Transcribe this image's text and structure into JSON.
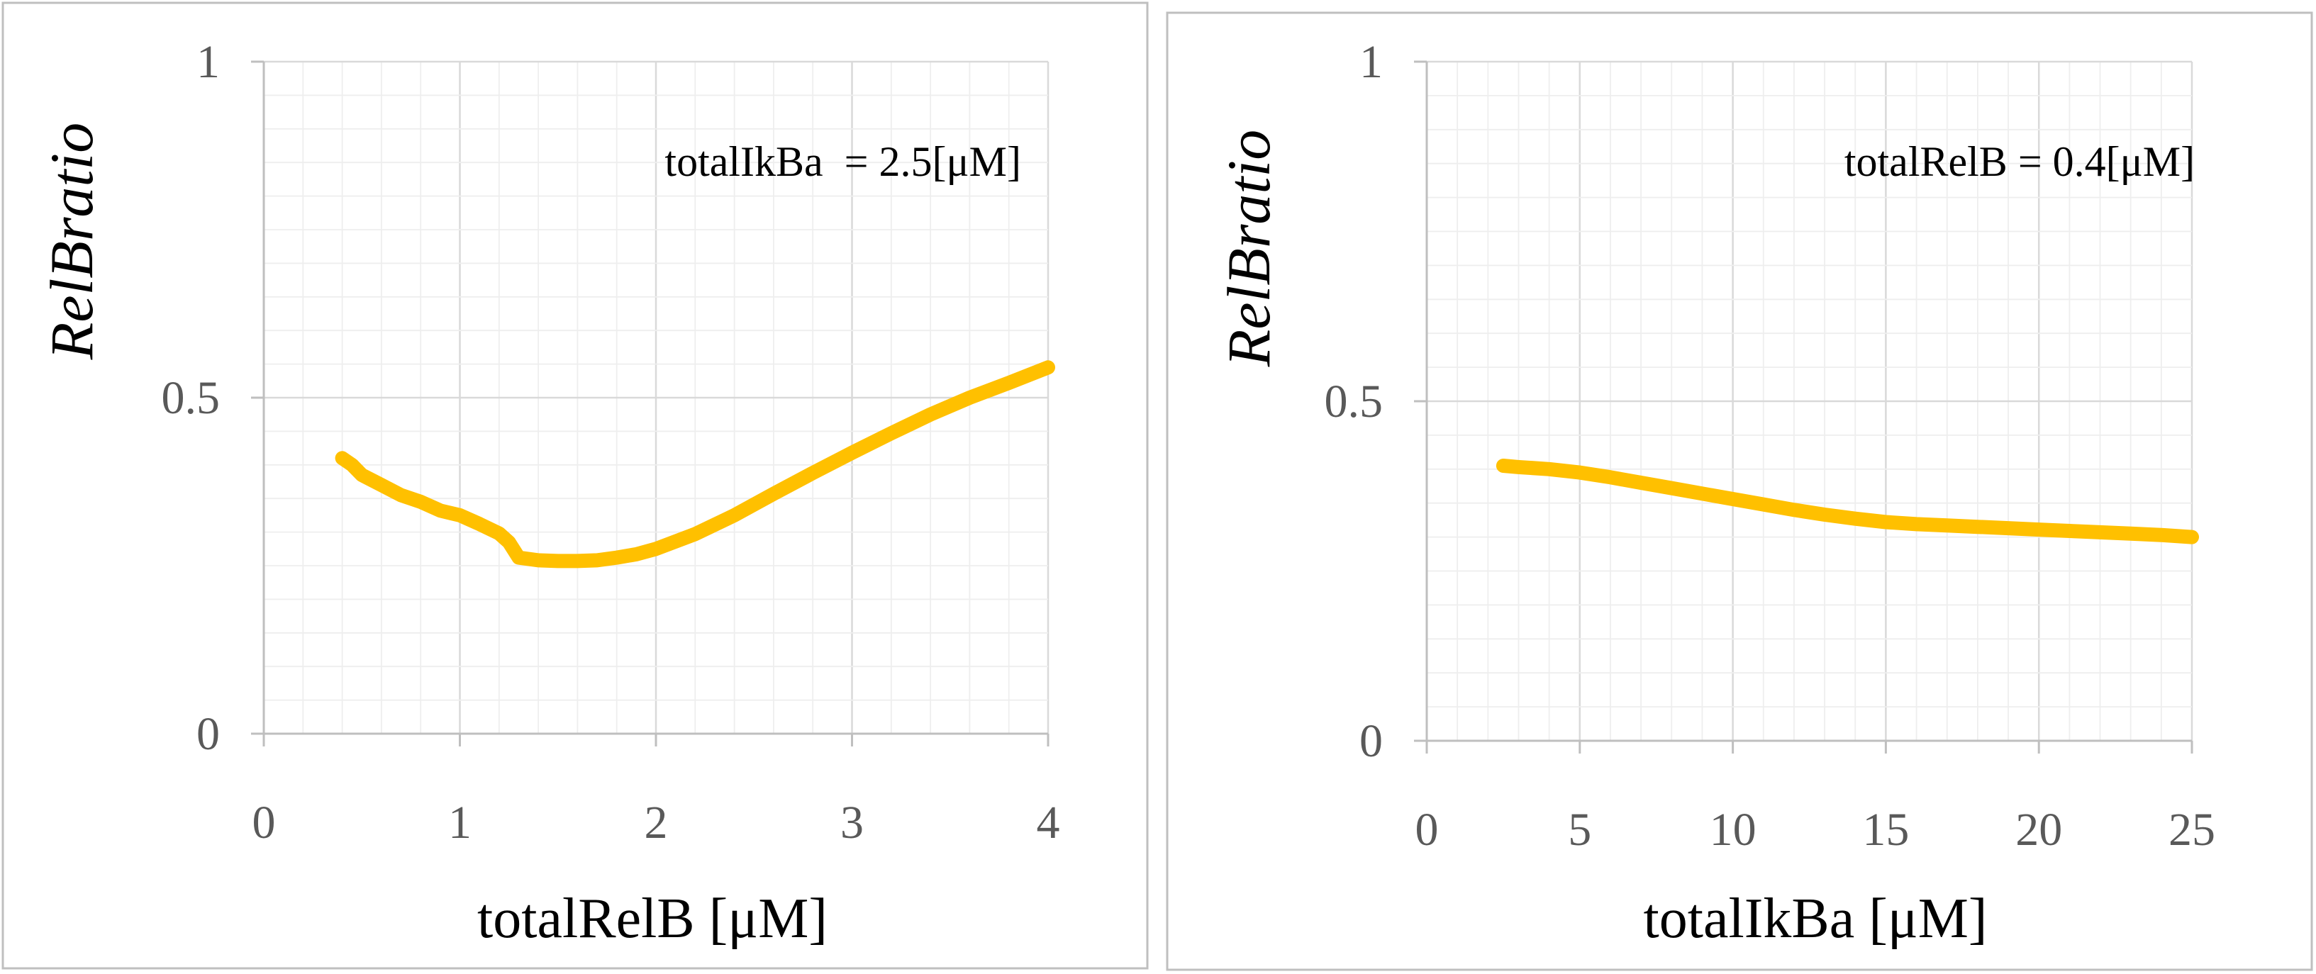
{
  "chart_data": [
    {
      "type": "line",
      "title": "",
      "xlabel": "totalRelB [μM]",
      "ylabel": "RelBratio",
      "annotation": "totalIkBa  = 2.5[μM]",
      "xlim": [
        0,
        4
      ],
      "ylim": [
        0,
        1
      ],
      "x_ticks": [
        0,
        1,
        2,
        3,
        4
      ],
      "x_tick_labels": [
        "0",
        "1",
        "2",
        "3",
        "4"
      ],
      "y_ticks": [
        0,
        0.5,
        1
      ],
      "y_tick_labels": [
        "0",
        "0.5",
        "1"
      ],
      "x_minor_step": 0.2,
      "y_minor_step": 0.05,
      "grid": true,
      "series": [
        {
          "name": "RelBratio",
          "color": "#ffc000",
          "x": [
            0.4,
            0.45,
            0.5,
            0.6,
            0.7,
            0.8,
            0.9,
            1.0,
            1.1,
            1.2,
            1.25,
            1.3,
            1.4,
            1.5,
            1.6,
            1.7,
            1.8,
            1.9,
            2.0,
            2.2,
            2.4,
            2.6,
            2.8,
            3.0,
            3.2,
            3.4,
            3.6,
            3.8,
            4.0
          ],
          "y": [
            0.41,
            0.4,
            0.385,
            0.37,
            0.355,
            0.345,
            0.332,
            0.325,
            0.312,
            0.298,
            0.285,
            0.262,
            0.258,
            0.257,
            0.257,
            0.258,
            0.262,
            0.267,
            0.275,
            0.297,
            0.325,
            0.357,
            0.388,
            0.418,
            0.447,
            0.475,
            0.5,
            0.522,
            0.545
          ]
        }
      ]
    },
    {
      "type": "line",
      "title": "",
      "xlabel": "totalIkBa [μM]",
      "ylabel": "RelBratio",
      "annotation": "totalRelB = 0.4[μM]",
      "xlim": [
        0,
        25
      ],
      "ylim": [
        0,
        1
      ],
      "x_ticks": [
        0,
        5,
        10,
        15,
        20,
        25
      ],
      "x_tick_labels": [
        "0",
        "5",
        "10",
        "15",
        "20",
        "25"
      ],
      "y_ticks": [
        0,
        0.5,
        1
      ],
      "y_tick_labels": [
        "0",
        "0.5",
        "1"
      ],
      "x_minor_step": 1,
      "y_minor_step": 0.05,
      "grid": true,
      "series": [
        {
          "name": "RelBratio",
          "color": "#ffc000",
          "x": [
            2.5,
            3,
            4,
            5,
            6,
            7,
            8,
            9,
            10,
            11,
            12,
            13,
            14,
            15,
            16,
            17,
            18,
            19,
            20,
            21,
            22,
            23,
            24,
            25
          ],
          "y": [
            0.405,
            0.403,
            0.4,
            0.395,
            0.388,
            0.38,
            0.372,
            0.364,
            0.356,
            0.348,
            0.34,
            0.333,
            0.327,
            0.322,
            0.319,
            0.317,
            0.315,
            0.313,
            0.311,
            0.309,
            0.307,
            0.305,
            0.303,
            0.3
          ]
        }
      ]
    }
  ]
}
